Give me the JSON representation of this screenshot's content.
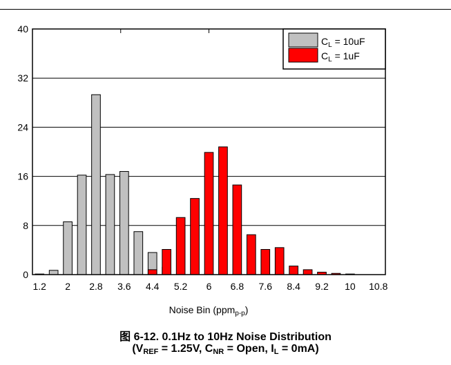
{
  "figure_caption": {
    "prefix": "图 6-12.",
    "text": "0.1Hz to 10Hz Noise Distribution",
    "line2_parts": {
      "open": "(V",
      "vref_sub": "REF",
      "vref_val": " = 1.25V, C",
      "cnr_sub": "NR",
      "cnr_val": " = Open, I",
      "il_sub": "L",
      "il_val": " = 0mA)"
    }
  },
  "chart_data": {
    "type": "bar",
    "xlabel_main": "Noise Bin (ppm",
    "xlabel_sub": "p-p",
    "xlabel_close": ")",
    "ylim": [
      0,
      40
    ],
    "y_ticks": [
      0,
      8,
      16,
      24,
      32,
      40
    ],
    "x_tick_labels": [
      "1.2",
      "2",
      "2.8",
      "3.6",
      "4.4",
      "5.2",
      "6",
      "6.8",
      "7.6",
      "8.4",
      "9.2",
      "10",
      "10.8"
    ],
    "categories": [
      "1.2",
      "1.6",
      "2",
      "2.4",
      "2.8",
      "3.2",
      "3.6",
      "4",
      "4.4",
      "4.8",
      "5.2",
      "5.6",
      "6",
      "6.4",
      "6.8",
      "7.2",
      "7.6",
      "8",
      "8.4",
      "8.8",
      "9.2",
      "9.6",
      "10",
      "10.4",
      "10.8"
    ],
    "series": [
      {
        "name_main": "C",
        "name_sub": "L",
        "name_rest": " = 10uF",
        "color": "#c0c0c0",
        "values": [
          0.1,
          0.7,
          8.6,
          16.2,
          29.3,
          16.3,
          16.8,
          7.0,
          3.6,
          1.2,
          0,
          0,
          0,
          0,
          0,
          0,
          0,
          0,
          0,
          0,
          0,
          0,
          0,
          0,
          0
        ]
      },
      {
        "name_main": "C",
        "name_sub": "L",
        "name_rest": " = 1uF",
        "color": "#ff0000",
        "values": [
          0,
          0,
          0,
          0,
          0,
          0,
          0,
          0,
          0.8,
          4.1,
          9.3,
          12.4,
          19.9,
          20.8,
          14.6,
          6.5,
          4.1,
          4.4,
          1.4,
          0.8,
          0.4,
          0.2,
          0.1,
          0,
          0
        ]
      }
    ],
    "grid": true,
    "legend_position": "top-right"
  },
  "colors": {
    "gray_bar": "#c0c0c0",
    "red_bar": "#ff0000"
  }
}
